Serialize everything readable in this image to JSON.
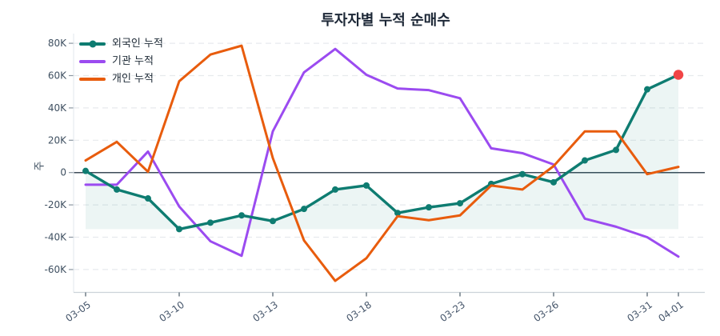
{
  "title": "투자자별 누적 순매수",
  "chart_data": {
    "type": "line",
    "title": "투자자별 누적 순매수",
    "ylabel": "주",
    "unit": "K (thousands of shares)",
    "grid": "horizontal-dashed",
    "legend_position": "top-left-inside",
    "ylim": [
      -75,
      88
    ],
    "x": [
      "03-05",
      "03-06",
      "03-09",
      "03-10",
      "03-11",
      "03-12",
      "03-13",
      "03-16",
      "03-17",
      "03-18",
      "03-19",
      "03-20",
      "03-23",
      "03-24",
      "03-25",
      "03-26",
      "03-27",
      "03-30",
      "03-31",
      "04-01"
    ],
    "x_tick_indices": [
      0,
      3,
      6,
      9,
      12,
      15,
      18,
      19
    ],
    "x_tick_labels": [
      "03-05",
      "03-10",
      "03-13",
      "03-18",
      "03-23",
      "03-26",
      "03-31",
      "04-01"
    ],
    "y_ticks": [
      {
        "label": "80K",
        "value": 80
      },
      {
        "label": "60K",
        "value": 60
      },
      {
        "label": "40K",
        "value": 40
      },
      {
        "label": "20K",
        "value": 20
      },
      {
        "label": "0",
        "value": 0
      },
      {
        "label": "-20K",
        "value": -20
      },
      {
        "label": "-40K",
        "value": -40
      },
      {
        "label": "-60K",
        "value": -60
      }
    ],
    "series": [
      {
        "name": "외국인 누적",
        "color": "#0e7c71",
        "marker": "circle",
        "values": [
          1,
          -10.5,
          -16,
          -35,
          -31,
          -26.5,
          -30,
          -22.5,
          -10.5,
          -8,
          -25,
          -21.5,
          -19,
          -7,
          -1,
          -6,
          7.5,
          14,
          51.5,
          60.5
        ]
      },
      {
        "name": "기관 누적",
        "color": "#9b4bf0",
        "marker": "none",
        "values": [
          -7.5,
          -7.5,
          13,
          -21,
          -42.5,
          -51.5,
          25.5,
          62,
          76.5,
          60.5,
          52,
          51,
          46,
          15,
          12,
          5,
          -28.5,
          -33.5,
          -40,
          -52
        ]
      },
      {
        "name": "개인 누적",
        "color": "#e85c0d",
        "marker": "none",
        "values": [
          7.5,
          19,
          0.5,
          56.5,
          73,
          78.5,
          9,
          -42,
          -67,
          -53,
          -27,
          -29.5,
          -26.5,
          -8,
          -10.5,
          4,
          25.5,
          25.5,
          -1,
          3.5
        ]
      }
    ],
    "fill_under_series": {
      "series": "외국인 누적",
      "baseline": -35,
      "color": "rgba(14,124,113,0.08)"
    },
    "endpoint_highlight": {
      "series": "외국인 누적",
      "x": "04-01",
      "value": 60.5,
      "color": "#f14546"
    },
    "colors": {
      "zero_line": "#3d4c59",
      "gridline": "#e7eaed",
      "axis_line": "#ccd3da",
      "tick_mark": "#8b97a2"
    }
  }
}
